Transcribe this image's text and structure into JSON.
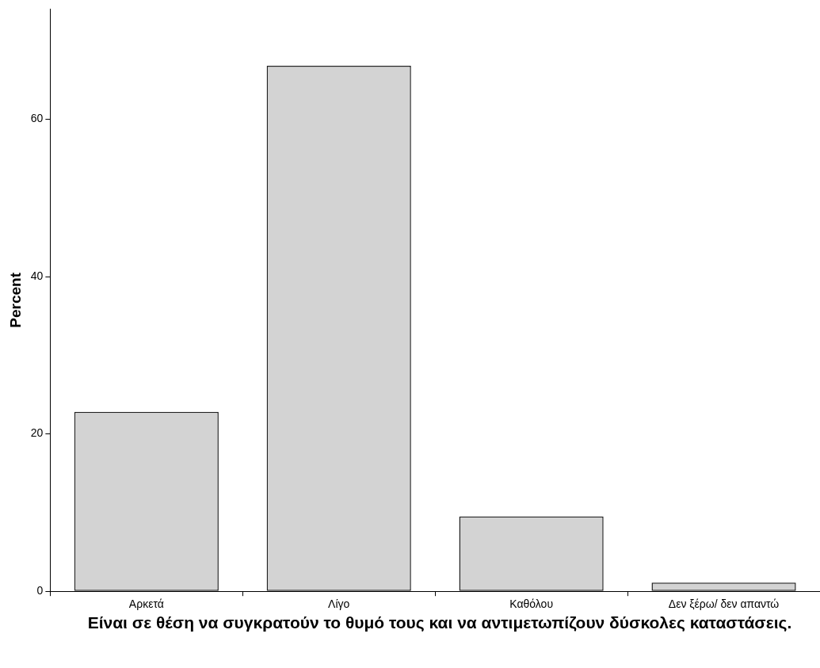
{
  "chart_data": {
    "type": "bar",
    "xlabel": "Είναι σε θέση να συγκρατούν το θυμό τους και να αντιμετωπίζουν δύσκολες καταστάσεις.",
    "ylabel": "Percent",
    "categories": [
      "Αρκετά",
      "Λίγο",
      "Καθόλου",
      "Δεν ξέρω/ δεν απαντώ"
    ],
    "values": [
      22.8,
      66.8,
      9.5,
      1.1
    ],
    "color": "#d3d3d3",
    "ylim": [
      0,
      74
    ],
    "yticks": [
      0,
      20,
      40,
      60
    ],
    "grid": false,
    "legend": false
  }
}
